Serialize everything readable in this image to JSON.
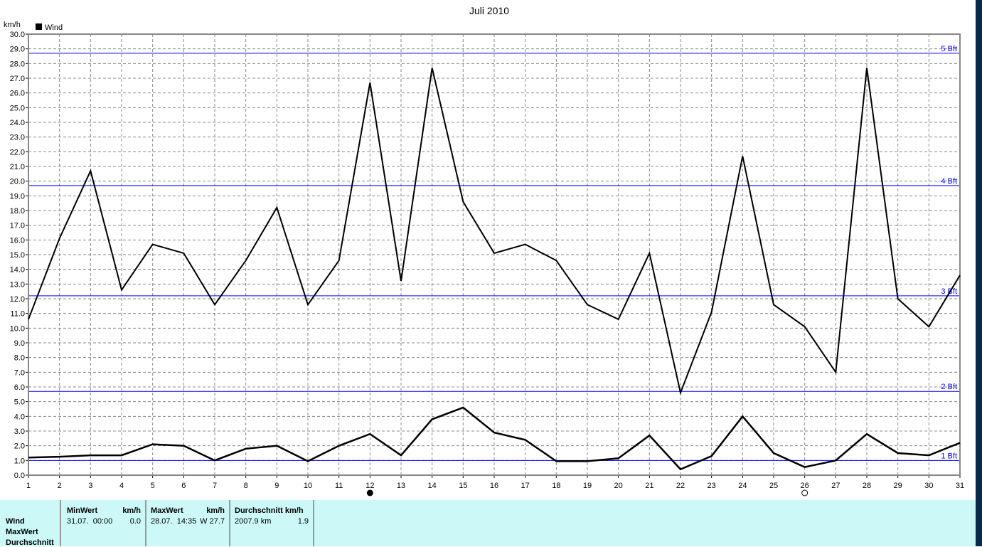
{
  "chart_data": {
    "type": "line",
    "title": "Juli 2010",
    "ylabel": "km/h",
    "legend": [
      {
        "name": "Wind",
        "color": "#000000"
      }
    ],
    "legend_placement": "top-left",
    "ylim": [
      0,
      30
    ],
    "xlim": [
      1,
      31
    ],
    "grid": true,
    "x": [
      1,
      2,
      3,
      4,
      5,
      6,
      7,
      8,
      9,
      10,
      11,
      12,
      13,
      14,
      15,
      16,
      17,
      18,
      19,
      20,
      21,
      22,
      23,
      24,
      25,
      26,
      27,
      28,
      29,
      30,
      31
    ],
    "series": [
      {
        "values": [
          10.6,
          16.1,
          20.7,
          12.6,
          15.7,
          15.1,
          11.6,
          14.6,
          18.2,
          11.6,
          14.6,
          26.7,
          13.2,
          27.7,
          18.6,
          15.1,
          15.7,
          14.6,
          11.6,
          10.6,
          15.1,
          5.6,
          11.1,
          21.7,
          11.6,
          10.1,
          7.0,
          27.7,
          12.0,
          10.1,
          13.6
        ],
        "color": "#000000"
      },
      {
        "values": [
          1.2,
          1.25,
          1.35,
          1.35,
          2.1,
          2.0,
          1.0,
          1.8,
          2.0,
          0.95,
          2.0,
          2.8,
          1.35,
          3.8,
          4.6,
          2.9,
          2.4,
          0.95,
          0.95,
          1.15,
          2.7,
          0.4,
          1.3,
          4.0,
          1.5,
          0.55,
          1.0,
          2.8,
          1.5,
          1.35,
          2.2
        ],
        "color": "#000000"
      }
    ],
    "reference_lines": [
      {
        "label": "1 Bft",
        "value": 1.0
      },
      {
        "label": "2 Bft",
        "value": 5.7
      },
      {
        "label": "3 Bft",
        "value": 12.2
      },
      {
        "label": "4 Bft",
        "value": 19.7
      },
      {
        "label": "5 Bft",
        "value": 28.7
      }
    ],
    "reference_color": "#0000ff",
    "moon_phases": [
      {
        "day": 12,
        "phase": "new-moon"
      },
      {
        "day": 26,
        "phase": "full-moon"
      }
    ]
  },
  "summary": {
    "row_labels": [
      "Wind",
      "MaxWert",
      "Durchschnitt"
    ],
    "min": {
      "header": "MinWert",
      "unit": "km/h",
      "date": "31.07.  00:00",
      "value": "0.0"
    },
    "max": {
      "header": "MaxWert",
      "unit": "km/h",
      "date": "28.07.  14:35",
      "value": "W 27.7"
    },
    "avg": {
      "header": "Durchschnitt km/h",
      "distance": "2007.9 km",
      "value": "1.9"
    }
  }
}
